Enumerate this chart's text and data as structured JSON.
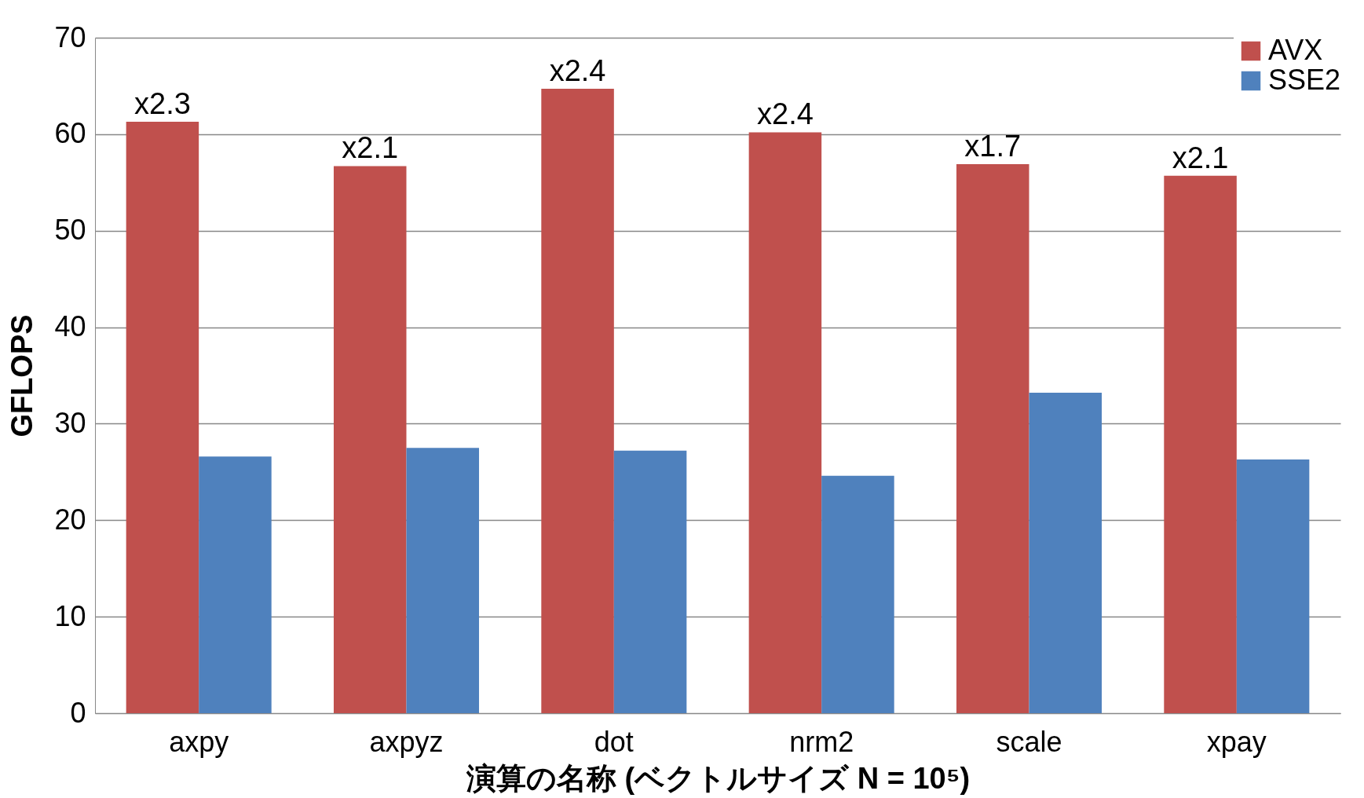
{
  "chart_data": {
    "type": "bar",
    "xlabel": "演算の名称 (ベクトルサイズ N = 10⁵)",
    "ylabel": "GFLOPS",
    "categories": [
      "axpy",
      "axpyz",
      "dot",
      "nrm2",
      "scale",
      "xpay"
    ],
    "series": [
      {
        "name": "AVX",
        "color": "#c0504d",
        "values": [
          61.3,
          56.7,
          64.7,
          60.2,
          56.9,
          55.7
        ]
      },
      {
        "name": "SSE2",
        "color": "#4f81bd",
        "values": [
          26.6,
          27.5,
          27.2,
          24.6,
          33.2,
          26.3
        ]
      }
    ],
    "ylim": [
      0,
      70
    ],
    "yticks": [
      0,
      10,
      20,
      30,
      40,
      50,
      60,
      70
    ],
    "grid": "y",
    "legend": "top right",
    "annotations": [
      {
        "text": "x2.3",
        "x": "axpy",
        "y": 61.3
      },
      {
        "text": "x2.1",
        "x": "axpyz",
        "y": 56.7
      },
      {
        "text": "x2.4",
        "x": "dot",
        "y": 64.7
      },
      {
        "text": "x2.4",
        "x": "nrm2",
        "y": 60.2
      },
      {
        "text": "x1.7",
        "x": "scale",
        "y": 56.9
      },
      {
        "text": "x2.1",
        "x": "xpay",
        "y": 55.7
      }
    ]
  }
}
